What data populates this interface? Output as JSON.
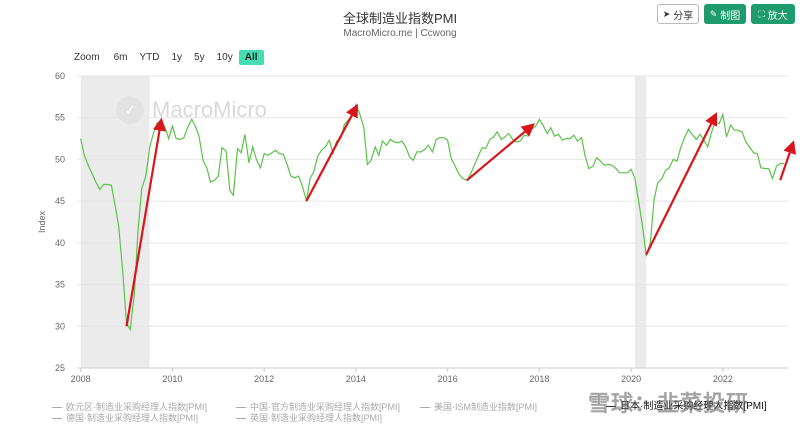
{
  "header": {
    "title": "全球制造业指数PMI",
    "subtitle": "MacroMicro.me | Ccwong"
  },
  "toolbar": {
    "share_label": "分享",
    "chart_label": "制图",
    "zoom_label": "放大"
  },
  "zoom": {
    "label": "Zoom",
    "buttons": [
      "6m",
      "YTD",
      "1y",
      "5y",
      "10y",
      "All"
    ],
    "active": "All"
  },
  "watermark": {
    "text": "MacroMicro"
  },
  "stamp": {
    "text": "雪球：韭菜投研"
  },
  "colors": {
    "line": "#5cc24a",
    "arrow": "#d9161c",
    "shade": "#ebebeb",
    "grid": "#e6e6e6",
    "accent": "#1f9c6d"
  },
  "chart_data": {
    "type": "line",
    "ylabel": "Index",
    "xlabel": "",
    "ylim": [
      25,
      60
    ],
    "yticks": [
      25,
      30,
      35,
      40,
      45,
      50,
      55,
      60
    ],
    "xlim": [
      2007.92,
      2023.42
    ],
    "xticks": [
      "2008",
      "2010",
      "2012",
      "2014",
      "2016",
      "2018",
      "2020",
      "2022"
    ],
    "grid": true,
    "shaded_periods": [
      [
        2008.0,
        2009.5
      ],
      [
        2020.08,
        2020.33
      ]
    ],
    "series": [
      {
        "name": "日本·制造业采购经理人指数[PMI]",
        "x": [
          2008.0,
          2008.08,
          2008.17,
          2008.25,
          2008.33,
          2008.42,
          2008.5,
          2008.58,
          2008.67,
          2008.75,
          2008.83,
          2008.92,
          2009.0,
          2009.08,
          2009.17,
          2009.25,
          2009.33,
          2009.42,
          2009.5,
          2009.58,
          2009.67,
          2009.75,
          2009.83,
          2009.92,
          2010.0,
          2010.08,
          2010.17,
          2010.25,
          2010.33,
          2010.42,
          2010.5,
          2010.58,
          2010.67,
          2010.75,
          2010.83,
          2010.92,
          2011.0,
          2011.08,
          2011.17,
          2011.25,
          2011.33,
          2011.42,
          2011.5,
          2011.58,
          2011.67,
          2011.75,
          2011.83,
          2011.92,
          2012.0,
          2012.08,
          2012.17,
          2012.25,
          2012.33,
          2012.42,
          2012.5,
          2012.58,
          2012.67,
          2012.75,
          2012.83,
          2012.92,
          2013.0,
          2013.08,
          2013.17,
          2013.25,
          2013.33,
          2013.42,
          2013.5,
          2013.58,
          2013.67,
          2013.75,
          2013.83,
          2013.92,
          2014.0,
          2014.08,
          2014.17,
          2014.25,
          2014.33,
          2014.42,
          2014.5,
          2014.58,
          2014.67,
          2014.75,
          2014.83,
          2014.92,
          2015.0,
          2015.08,
          2015.17,
          2015.25,
          2015.33,
          2015.42,
          2015.5,
          2015.58,
          2015.67,
          2015.75,
          2015.83,
          2015.92,
          2016.0,
          2016.08,
          2016.17,
          2016.25,
          2016.33,
          2016.42,
          2016.5,
          2016.58,
          2016.67,
          2016.75,
          2016.83,
          2016.92,
          2017.0,
          2017.08,
          2017.17,
          2017.25,
          2017.33,
          2017.42,
          2017.5,
          2017.58,
          2017.67,
          2017.75,
          2017.83,
          2017.92,
          2018.0,
          2018.08,
          2018.17,
          2018.25,
          2018.33,
          2018.42,
          2018.5,
          2018.58,
          2018.67,
          2018.75,
          2018.83,
          2018.92,
          2019.0,
          2019.08,
          2019.17,
          2019.25,
          2019.33,
          2019.42,
          2019.5,
          2019.58,
          2019.67,
          2019.75,
          2019.83,
          2019.92,
          2020.0,
          2020.08,
          2020.17,
          2020.25,
          2020.33,
          2020.42,
          2020.5,
          2020.58,
          2020.67,
          2020.75,
          2020.83,
          2020.92,
          2021.0,
          2021.08,
          2021.17,
          2021.25,
          2021.33,
          2021.42,
          2021.5,
          2021.58,
          2021.67,
          2021.75,
          2021.83,
          2021.92,
          2022.0,
          2022.08,
          2022.17,
          2022.25,
          2022.33,
          2022.42,
          2022.5,
          2022.58,
          2022.67,
          2022.75,
          2022.83,
          2022.92,
          2023.0,
          2023.08,
          2023.17,
          2023.25,
          2023.33
        ],
        "values": [
          52.5,
          50.5,
          49.2,
          48.3,
          47.3,
          46.4,
          47.0,
          47.0,
          46.9,
          44.5,
          42.0,
          36.3,
          30.4,
          29.6,
          33.8,
          41.4,
          46.5,
          48.0,
          51.3,
          53.0,
          54.4,
          54.5,
          54.0,
          52.5,
          54.0,
          52.5,
          52.4,
          52.6,
          53.8,
          54.8,
          54.0,
          52.8,
          49.9,
          49.0,
          47.3,
          47.5,
          48.0,
          51.4,
          51.0,
          46.3,
          45.7,
          51.3,
          50.8,
          53.0,
          49.6,
          51.5,
          50.0,
          49.0,
          50.7,
          50.5,
          50.8,
          51.1,
          50.7,
          50.6,
          49.4,
          48.0,
          47.8,
          48.0,
          46.9,
          45.0,
          47.7,
          48.5,
          50.4,
          51.1,
          51.5,
          52.3,
          50.7,
          52.2,
          52.5,
          54.2,
          54.7,
          55.2,
          56.6,
          55.5,
          53.9,
          49.4,
          49.9,
          51.5,
          50.5,
          52.2,
          51.7,
          52.4,
          52.1,
          52.0,
          52.2,
          51.6,
          50.3,
          49.9,
          50.9,
          50.9,
          51.2,
          51.7,
          50.9,
          52.4,
          52.6,
          52.6,
          52.3,
          50.1,
          49.1,
          48.2,
          47.7,
          47.5,
          48.2,
          49.3,
          50.4,
          51.4,
          51.3,
          52.4,
          52.7,
          53.3,
          52.4,
          52.7,
          53.1,
          52.4,
          52.1,
          52.2,
          52.9,
          52.8,
          53.6,
          54.0,
          54.8,
          54.1,
          53.1,
          53.8,
          52.8,
          53.0,
          52.3,
          52.5,
          52.5,
          52.9,
          52.2,
          52.6,
          50.3,
          48.9,
          49.2,
          50.2,
          49.8,
          49.3,
          49.4,
          49.3,
          48.9,
          48.4,
          48.4,
          48.4,
          48.8,
          47.8,
          44.8,
          41.9,
          38.4,
          40.1,
          45.2,
          47.2,
          47.7,
          48.7,
          49.0,
          50.0,
          49.8,
          51.4,
          52.7,
          53.6,
          53.0,
          52.4,
          53.0,
          52.4,
          51.5,
          53.2,
          54.5,
          54.3,
          55.4,
          52.7,
          54.1,
          53.5,
          53.5,
          53.3,
          52.1,
          51.5,
          50.8,
          50.7,
          49.0,
          48.9,
          48.9,
          47.7,
          49.2,
          49.5,
          49.5
        ]
      }
    ],
    "legend": [
      "欧元区·制造业采购经理人指数[PMI]",
      "中国·官方制造业采购经理人指数[PMI]",
      "美国·ISM制造业指数[PMI]",
      "德国·制造业采购经理人指数[PMI]",
      "英国·制造业采购经理人指数[PMI]",
      "日本·制造业采购经理人指数[PMI]"
    ],
    "arrows": [
      {
        "from": [
          2009.0,
          30
        ],
        "to": [
          2009.75,
          54.5
        ]
      },
      {
        "from": [
          2012.92,
          45
        ],
        "to": [
          2014.0,
          56.2
        ]
      },
      {
        "from": [
          2016.42,
          47.5
        ],
        "to": [
          2017.83,
          54.0
        ]
      },
      {
        "from": [
          2020.33,
          38.6
        ],
        "to": [
          2021.83,
          55.2
        ]
      },
      {
        "from": [
          2023.25,
          47.5
        ],
        "to": [
          2023.52,
          51.8
        ]
      }
    ]
  }
}
